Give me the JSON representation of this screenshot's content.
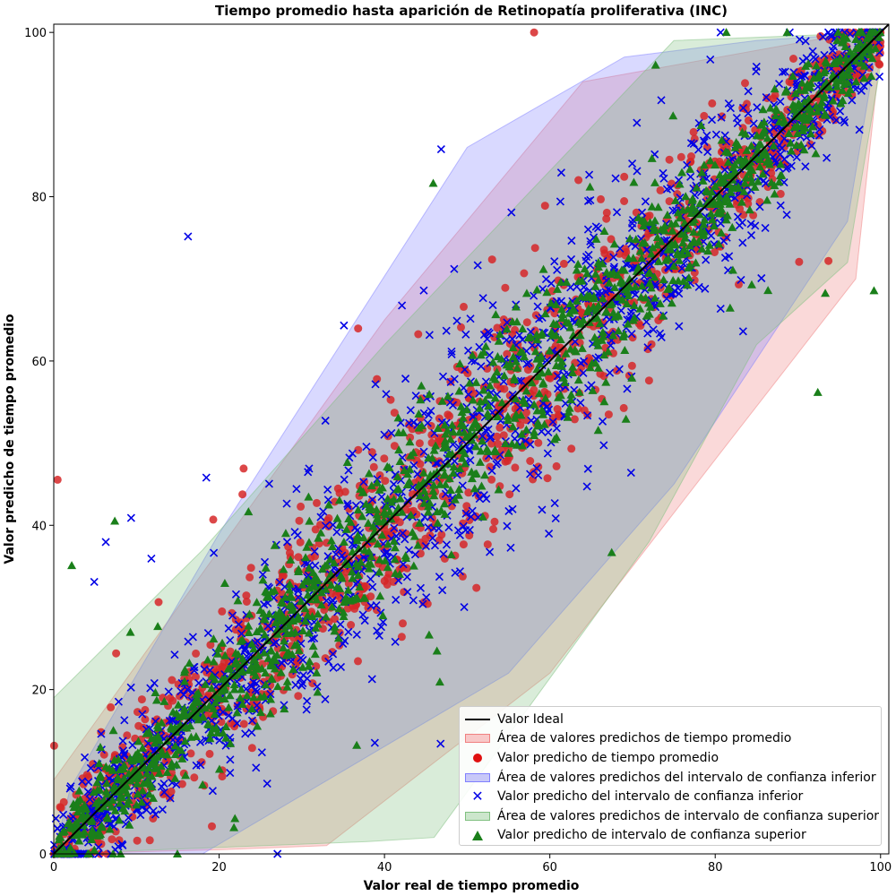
{
  "chart_data": {
    "type": "scatter",
    "title": "Tiempo promedio hasta aparición de Retinopatía proliferativa (INC)",
    "xlabel": "Valor real de tiempo promedio",
    "ylabel": "Valor predicho de tiempo promedio",
    "xlim": [
      0,
      101
    ],
    "ylim": [
      0,
      101
    ],
    "x_ticks": [
      0,
      20,
      40,
      60,
      80,
      100
    ],
    "y_ticks": [
      0,
      20,
      40,
      60,
      80,
      100
    ],
    "grid": false,
    "legend_position": "lower-right",
    "ideal_line": {
      "name": "Valor Ideal",
      "points": [
        [
          0,
          0
        ],
        [
          101,
          101
        ]
      ],
      "color": "#000000"
    },
    "areas": [
      {
        "name": "Área de valores predichos de tiempo promedio",
        "color": "#f08080",
        "opacity": 0.3,
        "hull": [
          [
            0,
            0
          ],
          [
            20,
            0.5
          ],
          [
            33,
            1
          ],
          [
            60,
            22
          ],
          [
            80,
            48
          ],
          [
            97,
            70
          ],
          [
            100,
            98
          ],
          [
            97,
            100
          ],
          [
            64,
            94
          ],
          [
            40,
            65
          ],
          [
            15,
            30
          ],
          [
            0,
            9
          ]
        ]
      },
      {
        "name": "Área de valores predichos del intervalo de confianza inferior",
        "color": "#8080ff",
        "opacity": 0.3,
        "hull": [
          [
            0,
            0
          ],
          [
            18,
            0
          ],
          [
            55,
            22
          ],
          [
            75,
            45
          ],
          [
            96,
            77
          ],
          [
            99,
            95
          ],
          [
            100,
            100
          ],
          [
            85,
            99
          ],
          [
            69,
            97
          ],
          [
            50,
            86
          ],
          [
            20,
            39
          ],
          [
            2,
            8
          ]
        ]
      },
      {
        "name": "Área de valores predichos de intervalo de confianza superior",
        "color": "#80c080",
        "opacity": 0.3,
        "hull": [
          [
            0,
            0
          ],
          [
            38,
            1.5
          ],
          [
            46,
            2
          ],
          [
            72,
            38
          ],
          [
            85,
            62
          ],
          [
            96,
            72
          ],
          [
            100,
            96
          ],
          [
            100,
            100
          ],
          [
            75,
            99
          ],
          [
            40,
            62
          ],
          [
            18,
            37
          ],
          [
            0,
            19
          ]
        ]
      }
    ],
    "series": [
      {
        "name": "Valor predicho de tiempo promedio",
        "marker": "circle",
        "color": "#d62728",
        "spread": 5.5,
        "count": 1400,
        "seed": 11
      },
      {
        "name": "Valor predicho del intervalo de confianza inferior",
        "marker": "x",
        "color": "#0000e6",
        "spread": 6.5,
        "count": 1400,
        "seed": 23
      },
      {
        "name": "Valor predicho de intervalo de confianza superior",
        "marker": "triangle",
        "color": "#1a7f1a",
        "spread": 4.5,
        "count": 1400,
        "seed": 37
      }
    ]
  },
  "legend": {
    "items": [
      {
        "label": "Valor Ideal",
        "kind": "line",
        "color": "#000000"
      },
      {
        "label": "Área de valores predichos de tiempo promedio",
        "kind": "area",
        "color": "#f8c8c8",
        "border": "#f08080"
      },
      {
        "label": "Valor predicho de tiempo promedio",
        "kind": "dot",
        "color": "#e01010"
      },
      {
        "label": "Área de valores predichos del intervalo de confianza inferior",
        "kind": "area",
        "color": "#c8c8f8",
        "border": "#8080ff"
      },
      {
        "label": "Valor predicho del intervalo de confianza inferior",
        "kind": "x",
        "color": "#0000e6"
      },
      {
        "label": "Área de valores predichos de intervalo de confianza superior",
        "kind": "area",
        "color": "#cce6cc",
        "border": "#80c080"
      },
      {
        "label": "Valor predicho de intervalo de confianza superior",
        "kind": "triangle",
        "color": "#1a7f1a"
      }
    ]
  }
}
